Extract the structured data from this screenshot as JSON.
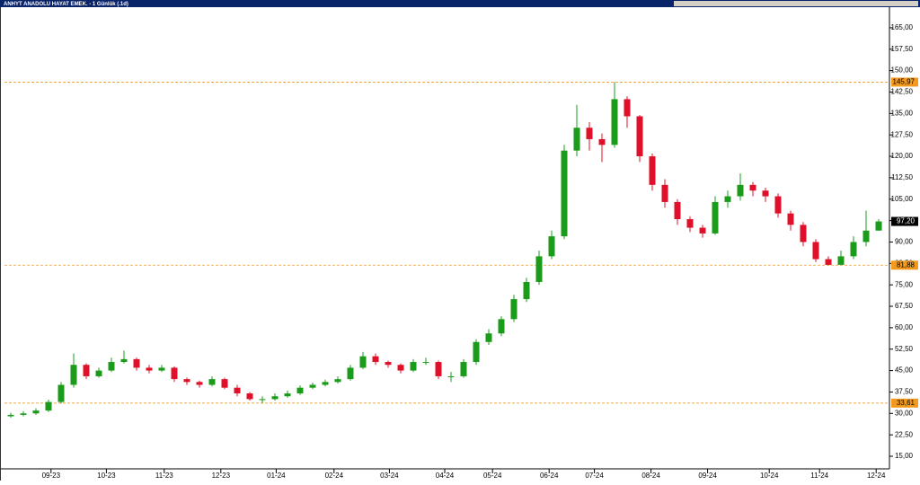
{
  "chart_data": {
    "type": "candlestick",
    "title": "ANHYT ANADOLU HAYAT EMEK. - 1 Günlük (.1d)",
    "open": [
      29,
      29.5,
      30,
      31,
      34,
      40,
      47,
      43,
      45,
      48,
      49,
      46,
      45,
      46,
      42,
      41,
      40,
      42,
      39,
      37,
      35,
      35,
      36,
      37,
      39,
      40,
      41,
      42,
      46,
      50,
      48,
      47,
      45,
      48,
      48,
      43,
      43,
      48,
      55,
      58,
      63,
      70,
      76,
      85,
      92,
      122,
      130,
      126,
      124,
      140,
      134,
      120,
      110,
      104,
      98,
      95,
      93,
      104,
      106,
      110,
      108,
      106,
      100,
      96,
      90,
      84,
      82,
      85,
      90,
      94
    ],
    "high": [
      30.2,
      30.8,
      31.8,
      34.8,
      41,
      51,
      47.5,
      46,
      49.5,
      52,
      49.5,
      47,
      47,
      46.5,
      42.5,
      41.5,
      43,
      42.5,
      40,
      37.5,
      36,
      37,
      38,
      39.8,
      40.8,
      41.8,
      43,
      47,
      51.5,
      51,
      48.5,
      47.5,
      49,
      49.5,
      48.5,
      44.5,
      49,
      56,
      59.5,
      64,
      71.5,
      77.5,
      87,
      94,
      124,
      138,
      132,
      128,
      145.97,
      141,
      134.5,
      121,
      112,
      105,
      99,
      96,
      106,
      108,
      114,
      111,
      109,
      107,
      101,
      97,
      91,
      85,
      87,
      92,
      101,
      98
    ],
    "low": [
      28.5,
      29,
      29.5,
      30.5,
      33.5,
      39,
      42,
      42.5,
      44.5,
      47.5,
      45,
      44,
      44.5,
      41,
      40,
      39,
      39.5,
      38.5,
      36,
      34.5,
      33.61,
      34.5,
      35.5,
      36.5,
      38.5,
      39.5,
      40.5,
      41.5,
      45.5,
      47,
      46,
      44,
      44.5,
      47,
      42,
      41,
      42.5,
      47,
      54,
      57,
      62,
      69,
      75,
      84,
      91,
      120,
      122,
      118,
      123,
      130,
      118,
      108,
      102,
      96,
      93.5,
      91.5,
      92.5,
      102,
      104.5,
      106,
      104,
      98.5,
      94,
      88.5,
      83,
      81.88,
      83,
      84,
      88.5,
      94
    ],
    "close": [
      29.5,
      30,
      31,
      34,
      40,
      47,
      43,
      45,
      48,
      49,
      46,
      45,
      46,
      42,
      41,
      40,
      42,
      39,
      37,
      35,
      35,
      36,
      37,
      39,
      40,
      41,
      42,
      46,
      50,
      48,
      47,
      45,
      48,
      48,
      43,
      43,
      48,
      55,
      58,
      63,
      70,
      76,
      85,
      92,
      122,
      130,
      126,
      124,
      140,
      134,
      120,
      110,
      104,
      98,
      95,
      93,
      104,
      106,
      110,
      108,
      106,
      100,
      96,
      90,
      84,
      82,
      85,
      90,
      94,
      97.2
    ],
    "up_color": "#1a9c1a",
    "down_color": "#e0102a",
    "xlim": [
      -0.5,
      69.5
    ],
    "xticks": [
      {
        "value": 3.2,
        "label": "09-23"
      },
      {
        "value": 7.6,
        "label": "10-23"
      },
      {
        "value": 12.2,
        "label": "11-23"
      },
      {
        "value": 16.7,
        "label": "12-23"
      },
      {
        "value": 21.1,
        "label": "01-24"
      },
      {
        "value": 25.7,
        "label": "02-24"
      },
      {
        "value": 30.1,
        "label": "03-24"
      },
      {
        "value": 34.5,
        "label": "04-24"
      },
      {
        "value": 38.3,
        "label": "05-24"
      },
      {
        "value": 42.8,
        "label": "06-24"
      },
      {
        "value": 46.4,
        "label": "07-24"
      },
      {
        "value": 50.9,
        "label": "08-24"
      },
      {
        "value": 55.4,
        "label": "09-24"
      },
      {
        "value": 60.3,
        "label": "10-24"
      },
      {
        "value": 64.3,
        "label": "11-24"
      },
      {
        "value": 68.8,
        "label": "12-24"
      }
    ],
    "ylim": [
      10.6,
      172.2
    ],
    "yticks": [
      {
        "value": 15,
        "label": "15,00"
      },
      {
        "value": 22.5,
        "label": "22,50"
      },
      {
        "value": 30,
        "label": "30,00"
      },
      {
        "value": 37.5,
        "label": "37,50"
      },
      {
        "value": 45,
        "label": "45,00"
      },
      {
        "value": 52.5,
        "label": "52,50"
      },
      {
        "value": 60,
        "label": "60,00"
      },
      {
        "value": 67.5,
        "label": "67,50"
      },
      {
        "value": 75,
        "label": "75,00"
      },
      {
        "value": 82.5,
        "label": "82,50"
      },
      {
        "value": 90,
        "label": "90,00"
      },
      {
        "value": 97.5,
        "label": "97,50"
      },
      {
        "value": 105,
        "label": "105,00"
      },
      {
        "value": 112.5,
        "label": "112,50"
      },
      {
        "value": 120,
        "label": "120,00"
      },
      {
        "value": 127.5,
        "label": "127,50"
      },
      {
        "value": 135,
        "label": "135,00"
      },
      {
        "value": 142.5,
        "label": "142,50"
      },
      {
        "value": 150,
        "label": "150,00"
      },
      {
        "value": 157.5,
        "label": "157,50"
      },
      {
        "value": 165,
        "label": "165,00"
      }
    ],
    "levels": [
      {
        "value": 145.97,
        "label": "145,97"
      },
      {
        "value": 81.88,
        "label": "81,88"
      },
      {
        "value": 33.61,
        "label": "33,61"
      }
    ],
    "level_color": "#f39a1e",
    "last_price": {
      "value": 97.2,
      "label": "97,20"
    }
  }
}
